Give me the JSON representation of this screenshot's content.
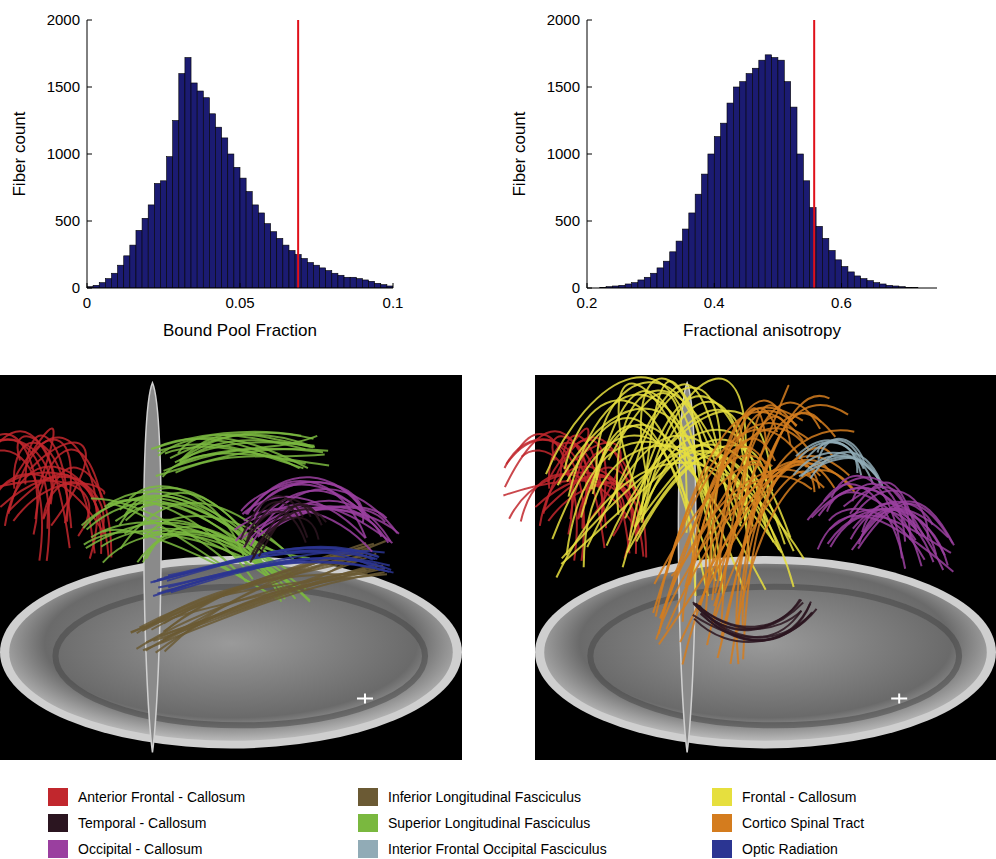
{
  "chart_data": [
    {
      "type": "histogram",
      "x_label": "Bound Pool Fraction",
      "y_label": "Fiber count",
      "color": "#1b1b72",
      "bins": [
        0,
        0.002,
        0.004,
        0.006,
        0.008,
        0.01,
        0.012,
        0.014,
        0.016,
        0.018,
        0.02,
        0.022,
        0.024,
        0.026,
        0.028,
        0.03,
        0.032,
        0.034,
        0.036,
        0.038,
        0.04,
        0.042,
        0.044,
        0.046,
        0.048,
        0.05,
        0.052,
        0.054,
        0.056,
        0.058,
        0.06,
        0.062,
        0.064,
        0.066,
        0.068,
        0.07,
        0.072,
        0.074,
        0.076,
        0.078,
        0.08,
        0.082,
        0.084,
        0.086,
        0.088,
        0.09,
        0.092,
        0.094,
        0.096,
        0.098,
        0.1
      ],
      "values": [
        10,
        20,
        40,
        70,
        110,
        170,
        240,
        320,
        430,
        520,
        620,
        780,
        800,
        980,
        1250,
        1600,
        1720,
        1530,
        1470,
        1420,
        1300,
        1200,
        1120,
        1000,
        900,
        820,
        720,
        620,
        560,
        480,
        420,
        370,
        320,
        280,
        250,
        220,
        190,
        170,
        150,
        130,
        110,
        95,
        80,
        80,
        70,
        60,
        50,
        35,
        25,
        15
      ],
      "threshold": 0.069,
      "xlim": [
        0,
        0.1
      ],
      "xticks": [
        0,
        0.05,
        0.1
      ],
      "ylim": [
        0,
        2000
      ],
      "yticks": [
        0,
        500,
        1000,
        1500,
        2000
      ],
      "grid": false
    },
    {
      "type": "histogram",
      "x_label": "Fractional anisotropy",
      "y_label": "Fiber count",
      "color": "#1b1b72",
      "bins": [
        0.22,
        0.23,
        0.24,
        0.25,
        0.26,
        0.27,
        0.28,
        0.29,
        0.3,
        0.31,
        0.32,
        0.33,
        0.34,
        0.35,
        0.36,
        0.37,
        0.38,
        0.39,
        0.4,
        0.41,
        0.42,
        0.43,
        0.44,
        0.45,
        0.46,
        0.47,
        0.48,
        0.49,
        0.5,
        0.51,
        0.52,
        0.53,
        0.54,
        0.55,
        0.56,
        0.57,
        0.58,
        0.59,
        0.6,
        0.61,
        0.62,
        0.63,
        0.64,
        0.65,
        0.66,
        0.67,
        0.68,
        0.69,
        0.7,
        0.71,
        0.72
      ],
      "values": [
        5,
        10,
        15,
        20,
        30,
        40,
        60,
        80,
        110,
        150,
        200,
        270,
        350,
        440,
        560,
        700,
        850,
        1000,
        1130,
        1230,
        1380,
        1500,
        1540,
        1600,
        1640,
        1700,
        1740,
        1720,
        1700,
        1540,
        1350,
        1000,
        800,
        600,
        460,
        370,
        280,
        210,
        160,
        120,
        90,
        70,
        55,
        40,
        30,
        20,
        15,
        10,
        5,
        3
      ],
      "threshold": 0.557,
      "xlim": [
        0.2,
        0.75
      ],
      "xticks": [
        0.2,
        0.4,
        0.6
      ],
      "ylim": [
        0,
        2000
      ],
      "yticks": [
        0,
        500,
        1000,
        1500,
        2000
      ],
      "grid": false
    }
  ],
  "tract_legend": [
    {
      "label": "Anterior Frontal - Callosum",
      "color": "#c1272d"
    },
    {
      "label": "Temporal - Callosum",
      "color": "#2b1520"
    },
    {
      "label": "Occipital - Callosum",
      "color": "#9a3f9f"
    },
    {
      "label": "Inferior Longitudinal Fasciculus",
      "color": "#6b5a34"
    },
    {
      "label": "Superior Longitudinal Fasciculus",
      "color": "#7ab83f"
    },
    {
      "label": "Interior Frontal Occipital Fasciculus",
      "color": "#91abb6"
    },
    {
      "label": "Frontal - Callosum",
      "color": "#e6df3e"
    },
    {
      "label": "Cortico Spinal Tract",
      "color": "#d47c1e"
    },
    {
      "label": "Optic Radiation",
      "color": "#2b3592"
    }
  ]
}
